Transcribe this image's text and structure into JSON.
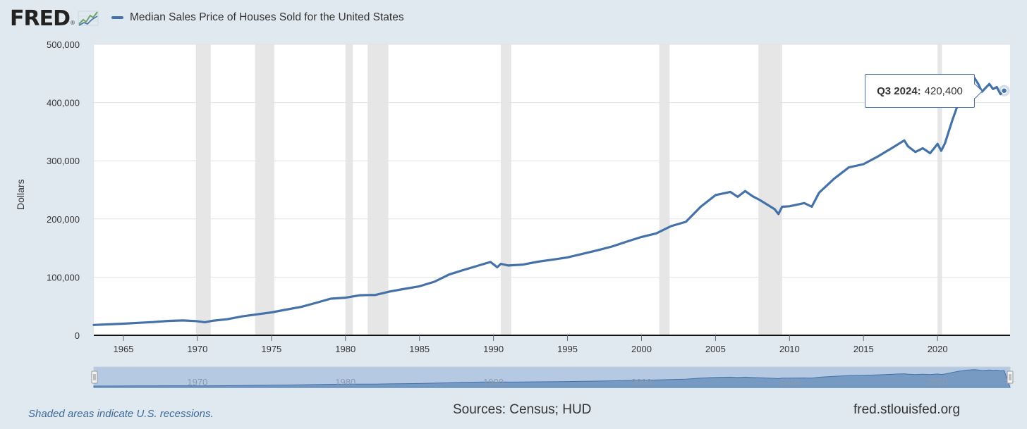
{
  "header": {
    "logo_text": "FRED",
    "logo_mark": "®",
    "logo_icon": "trend-graph-icon",
    "legend_label": "Median Sales Price of Houses Sold for the United States",
    "legend_color": "#4472a8"
  },
  "tooltip": {
    "period": "Q3 2024:",
    "value": "420,400"
  },
  "footer": {
    "recession_note": "Shaded areas indicate U.S. recessions.",
    "sources": "Sources: Census; HUD",
    "site": "fred.stlouisfed.org"
  },
  "colors": {
    "background": "#e1e9f0",
    "series": "#4472a8",
    "recession": "#e6e6e6",
    "navigator_fill": "#b5c9e2"
  },
  "chart_data": {
    "type": "line",
    "title": "",
    "xlabel": "",
    "ylabel": "Dollars",
    "xlim": [
      1963.0,
      2024.9
    ],
    "ylim": [
      0,
      500000
    ],
    "grid": true,
    "legend_position": "top-left",
    "x_ticks": [
      1965,
      1970,
      1975,
      1980,
      1985,
      1990,
      1995,
      2000,
      2005,
      2010,
      2015,
      2020
    ],
    "y_ticks": [
      0,
      100000,
      200000,
      300000,
      400000,
      500000
    ],
    "y_tick_labels": [
      "0",
      "100,000",
      "200,000",
      "300,000",
      "400,000",
      "500,000"
    ],
    "recessions": [
      [
        1969.9,
        1970.9
      ],
      [
        1973.9,
        1975.2
      ],
      [
        1980.0,
        1980.5
      ],
      [
        1981.5,
        1982.9
      ],
      [
        1990.5,
        1991.2
      ],
      [
        2001.2,
        2001.9
      ],
      [
        2007.9,
        2009.5
      ],
      [
        2020.0,
        2020.3
      ]
    ],
    "navigator_labels": [
      "1970",
      "1980",
      "1990",
      "2000",
      "2010",
      "2020"
    ],
    "series": [
      {
        "name": "Median Sales Price of Houses Sold for the United States",
        "x": [
          1963.0,
          1964.0,
          1965.0,
          1966.0,
          1967.0,
          1968.0,
          1969.0,
          1969.9,
          1970.5,
          1971.0,
          1972.0,
          1973.0,
          1974.0,
          1975.0,
          1976.0,
          1977.0,
          1978.0,
          1979.0,
          1980.0,
          1981.0,
          1981.8,
          1982.0,
          1983.0,
          1984.0,
          1985.0,
          1986.0,
          1987.0,
          1988.0,
          1989.0,
          1989.8,
          1990.25,
          1990.5,
          1991.0,
          1992.0,
          1993.0,
          1994.0,
          1995.0,
          1996.0,
          1997.0,
          1998.0,
          1999.0,
          2000.0,
          2001.0,
          2002.0,
          2003.0,
          2004.0,
          2005.0,
          2006.0,
          2006.5,
          2007.0,
          2007.5,
          2008.0,
          2009.0,
          2009.25,
          2009.5,
          2010.0,
          2011.0,
          2011.5,
          2012.0,
          2013.0,
          2014.0,
          2015.0,
          2016.0,
          2017.0,
          2017.75,
          2018.0,
          2018.5,
          2019.0,
          2019.5,
          2020.0,
          2020.25,
          2020.5,
          2021.0,
          2021.5,
          2022.0,
          2022.5,
          2022.75,
          2023.0,
          2023.5,
          2023.75,
          2024.0,
          2024.25,
          2024.5
        ],
        "y": [
          17800,
          18900,
          20000,
          21400,
          22700,
          24700,
          25600,
          24500,
          22500,
          25000,
          27600,
          32500,
          35900,
          39300,
          44200,
          48800,
          55700,
          62900,
          64600,
          68900,
          69400,
          69300,
          75300,
          79900,
          84300,
          92000,
          104500,
          112500,
          120000,
          126000,
          117000,
          122900,
          120000,
          121500,
          126500,
          130000,
          133900,
          140000,
          146000,
          152500,
          161000,
          169000,
          175200,
          187600,
          195000,
          221000,
          240900,
          246500,
          238000,
          247900,
          239000,
          232400,
          216700,
          208400,
          221000,
          221800,
          227200,
          221000,
          245200,
          268900,
          288500,
          294200,
          307800,
          323100,
          335000,
          325000,
          315000,
          321500,
          313000,
          329000,
          317100,
          330000,
          369800,
          405000,
          430000,
          442300,
          432000,
          418500,
          432000,
          423200,
          426800,
          414500,
          420400
        ]
      }
    ]
  }
}
